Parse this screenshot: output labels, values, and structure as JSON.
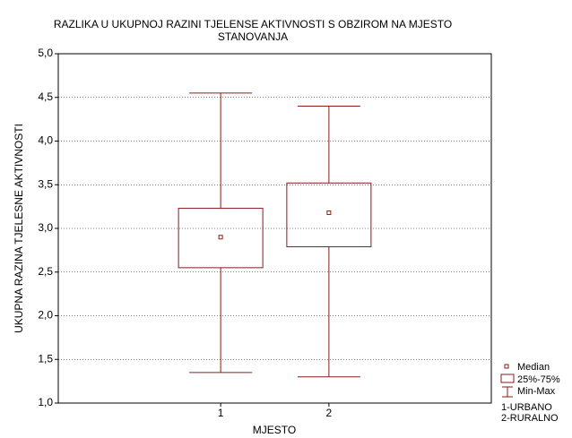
{
  "chart_data": {
    "type": "box",
    "title": [
      "RAZLIKA U UKUPNOJ RAZINI TJELENSE AKTIVNOSTI S OBZIROM NA MJESTO",
      "STANOVANJA"
    ],
    "x_label": "MJESTO",
    "y_label": "UKUPNA RAZINA TJELESNE AKTIVNOSTI",
    "categories": [
      "1",
      "2"
    ],
    "x": [
      1,
      2
    ],
    "xlim": [
      -0.5,
      3.5
    ],
    "min": [
      1.35,
      1.3
    ],
    "q1": [
      2.55,
      2.79
    ],
    "median": [
      2.9,
      3.18
    ],
    "q3": [
      3.23,
      3.52
    ],
    "max": [
      4.55,
      4.4
    ],
    "color": "#8b1a1a",
    "ylim": [
      1,
      5
    ],
    "yticks": [
      {
        "value": 1,
        "label": "1,0"
      },
      {
        "value": 1.5,
        "label": "1,5"
      },
      {
        "value": 2,
        "label": "2,0"
      },
      {
        "value": 2.5,
        "label": "2,5"
      },
      {
        "value": 3,
        "label": "3,0"
      },
      {
        "value": 3.5,
        "label": "3,5"
      },
      {
        "value": 4,
        "label": "4,0"
      },
      {
        "value": 4.5,
        "label": "4,5"
      },
      {
        "value": 5,
        "label": "5,0"
      }
    ],
    "grid": true,
    "legend": [
      "Median",
      "25%-75%",
      "Min-Max"
    ],
    "notes": [
      "1-URBANO",
      "2-RURALNO"
    ]
  }
}
